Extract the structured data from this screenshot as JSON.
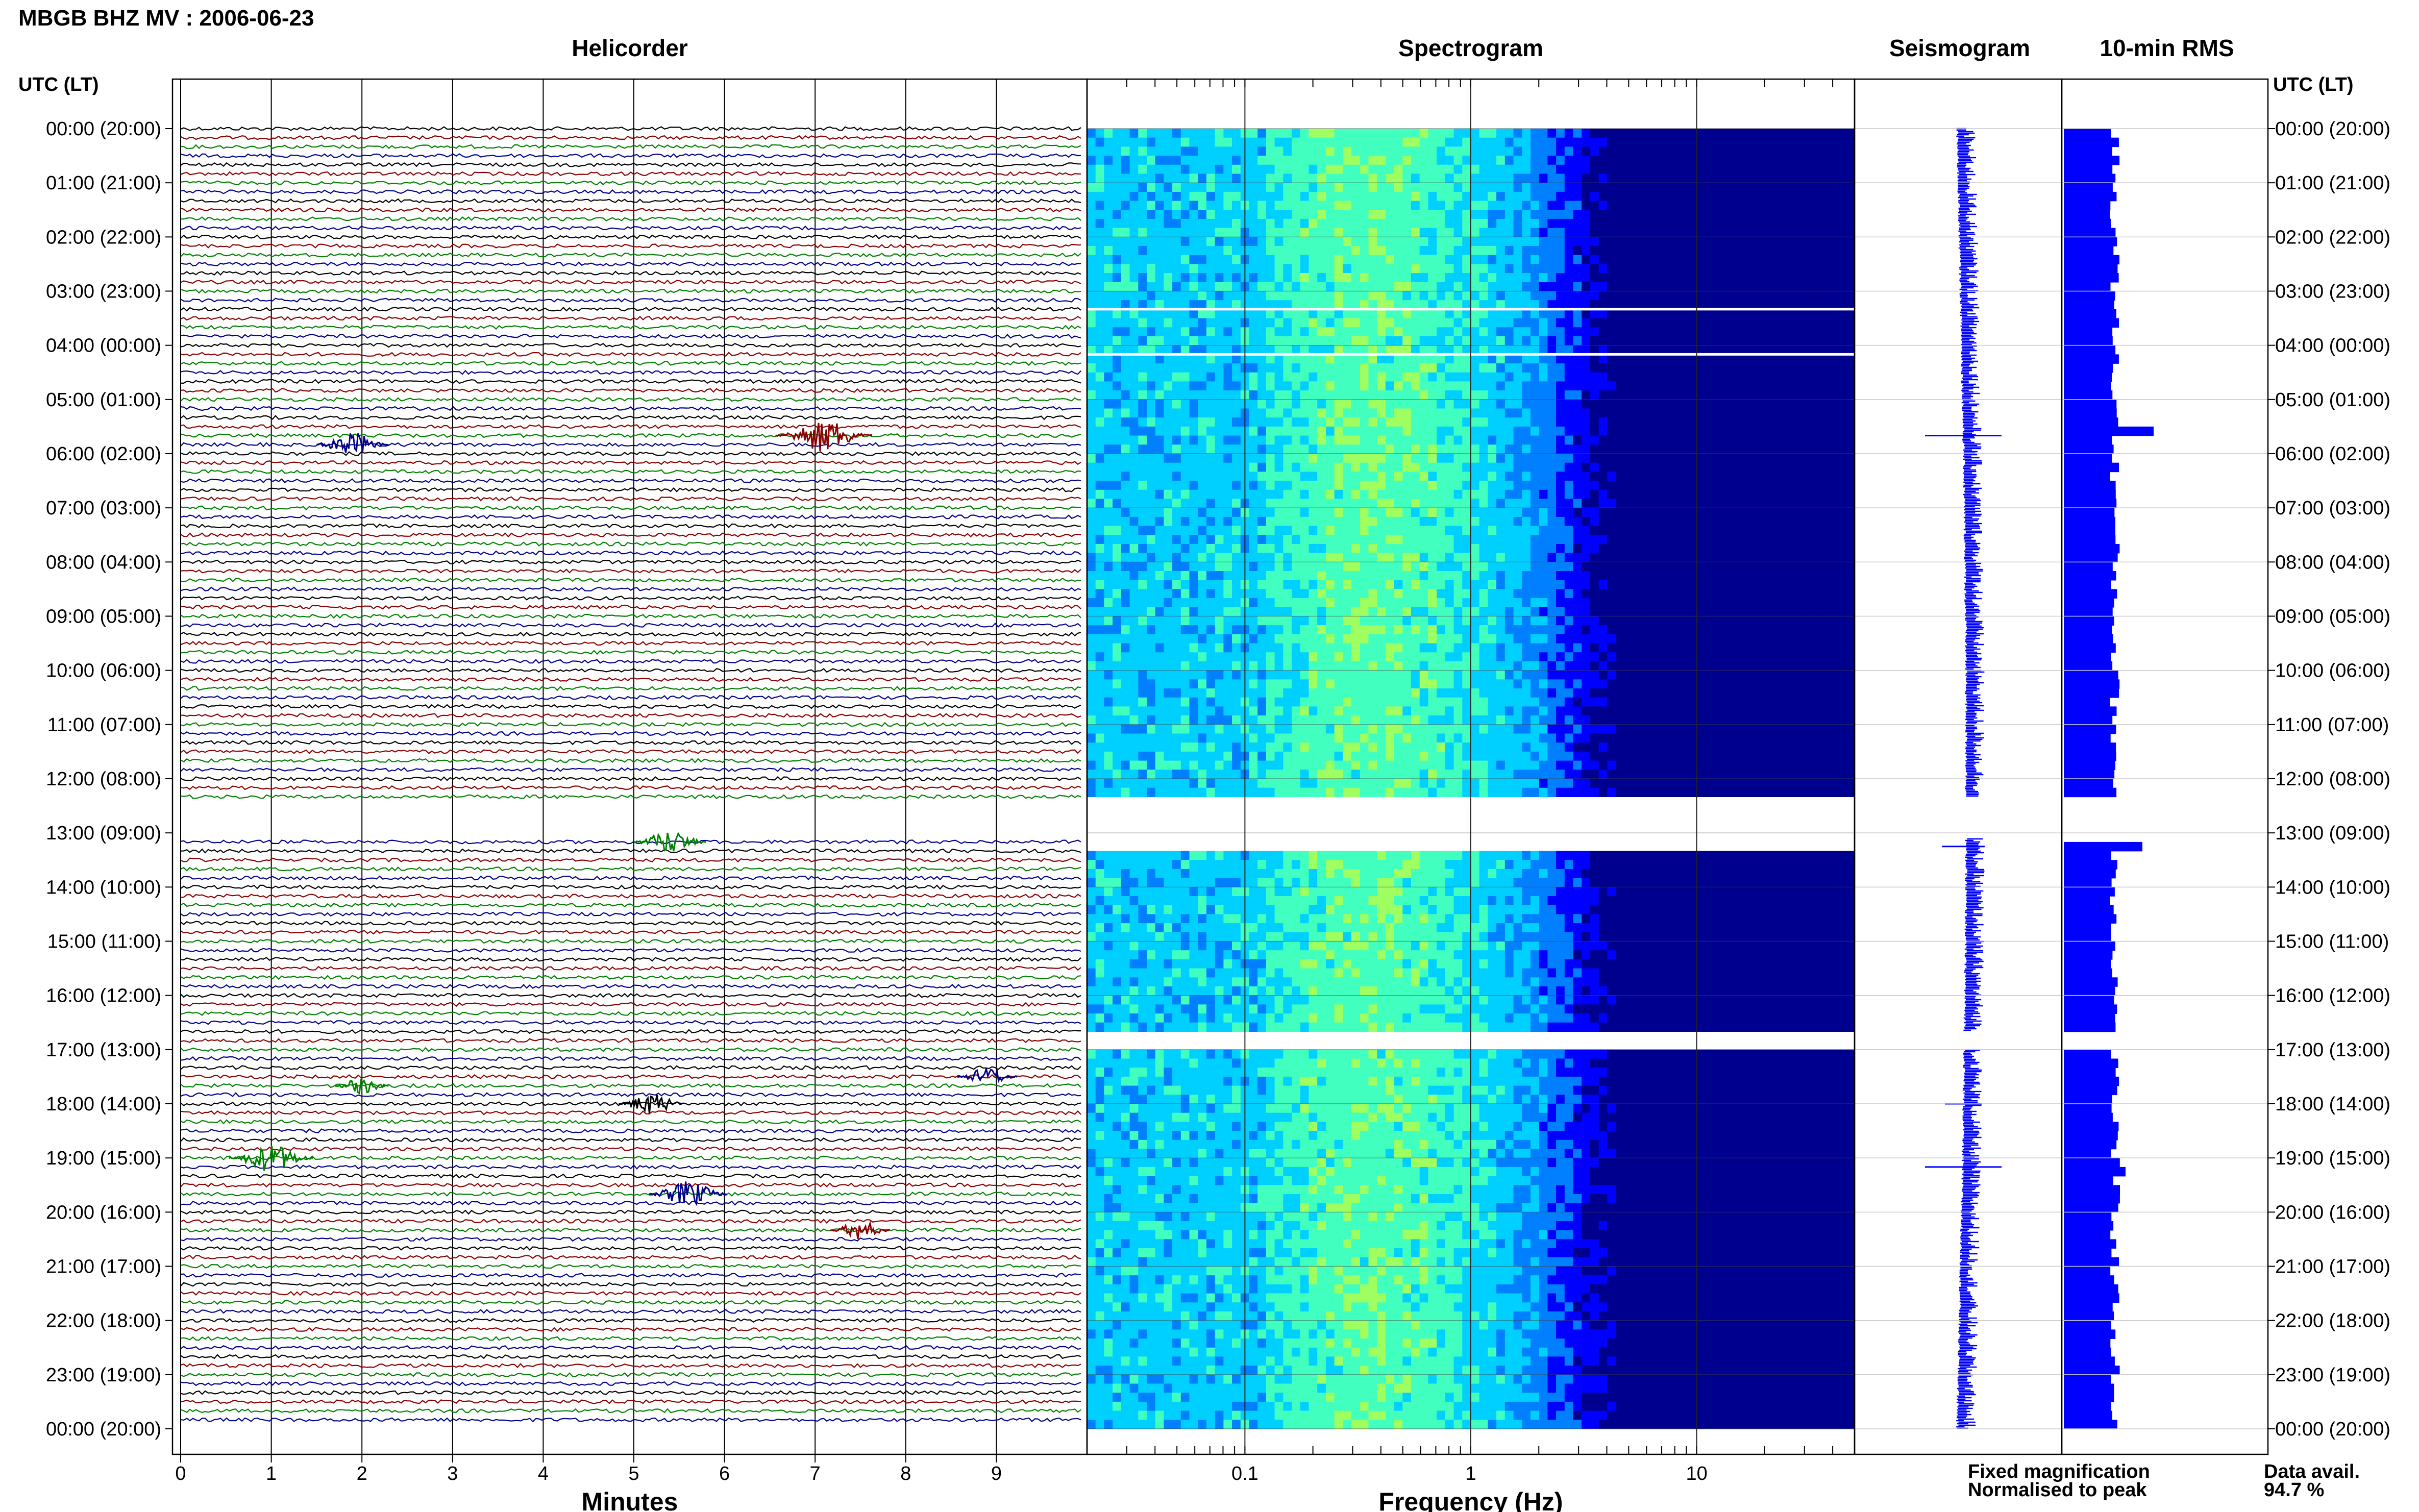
{
  "chart_data": {
    "type": "seismic-daily-summary",
    "title": "MBGB BHZ MV : 2006-06-23",
    "panels": {
      "helicorder": {
        "title": "Helicorder",
        "xlabel": "Minutes",
        "xlim": [
          0,
          10
        ],
        "x_ticks": [
          "0",
          "1",
          "2",
          "3",
          "4",
          "5",
          "6",
          "7",
          "8",
          "9"
        ],
        "trace_colors": [
          "#000000",
          "#8b0000",
          "#008000",
          "#00008b"
        ],
        "gap_utc": [
          "12:30",
          "13:00"
        ],
        "events": [
          {
            "utc": "05:40",
            "minute": 7.1,
            "color": "#8b0000",
            "strength": 1.0
          },
          {
            "utc": "05:50",
            "minute": 1.9,
            "color": "#00008b",
            "strength": 0.6
          },
          {
            "utc": "13:10",
            "minute": 5.4,
            "color": "#008000",
            "strength": 0.6
          },
          {
            "utc": "18:00",
            "minute": 5.2,
            "color": "#000000",
            "strength": 0.5
          },
          {
            "utc": "19:00",
            "minute": 1.0,
            "color": "#008000",
            "strength": 0.8
          },
          {
            "utc": "19:40",
            "minute": 5.6,
            "color": "#00008b",
            "strength": 0.7
          },
          {
            "utc": "17:30",
            "minute": 8.9,
            "color": "#00008b",
            "strength": 0.4
          },
          {
            "utc": "20:20",
            "minute": 7.5,
            "color": "#8b0000",
            "strength": 0.4
          },
          {
            "utc": "17:40",
            "minute": 2.0,
            "color": "#008000",
            "strength": 0.3
          }
        ]
      },
      "spectrogram": {
        "title": "Spectrogram",
        "xlabel": "Frequency (Hz)",
        "xscale": "log",
        "xlim": [
          0.02,
          50
        ],
        "x_ticks": [
          "0.1",
          "1",
          "10"
        ],
        "colormap": [
          "#00008f",
          "#0000ff",
          "#0080ff",
          "#00d0ff",
          "#40ffbf",
          "#a0ff60"
        ],
        "gaps_utc": [
          [
            "12:15",
            "13:15"
          ],
          [
            "16:40",
            "17:00"
          ]
        ],
        "white_lines_utc": [
          "03:20",
          "04:10"
        ]
      },
      "seismogram": {
        "title": "Seismogram",
        "color": "#0000ff",
        "spikes": [
          {
            "utc": "05:40",
            "amplitude": 1.0
          },
          {
            "utc": "13:15",
            "amplitude": 0.45
          },
          {
            "utc": "18:00",
            "amplitude": 0.35
          },
          {
            "utc": "19:10",
            "amplitude": 1.0
          }
        ]
      },
      "rms": {
        "title": "10-min RMS",
        "color": "#0000ff",
        "gaps_utc": [
          [
            "12:20",
            "13:10"
          ],
          [
            "16:40",
            "17:00"
          ]
        ],
        "peaks": [
          {
            "utc": "05:30",
            "value": 1.6
          },
          {
            "utc": "13:10",
            "value": 1.4
          },
          {
            "utc": "19:10",
            "value": 1.1
          },
          {
            "utc": "19:30",
            "value": 1.0
          }
        ],
        "baseline_min": 0.82,
        "baseline_max": 1.0
      }
    },
    "y_axis": {
      "label": "UTC (LT)",
      "ticks": [
        "00:00 (20:00)",
        "01:00 (21:00)",
        "02:00 (22:00)",
        "03:00 (23:00)",
        "04:00 (00:00)",
        "05:00 (01:00)",
        "06:00 (02:00)",
        "07:00 (03:00)",
        "08:00 (04:00)",
        "09:00 (05:00)",
        "10:00 (06:00)",
        "11:00 (07:00)",
        "12:00 (08:00)",
        "13:00 (09:00)",
        "14:00 (10:00)",
        "15:00 (11:00)",
        "16:00 (12:00)",
        "17:00 (13:00)",
        "18:00 (14:00)",
        "19:00 (15:00)",
        "20:00 (16:00)",
        "21:00 (17:00)",
        "22:00 (18:00)",
        "23:00 (19:00)",
        "00:00 (20:00)"
      ]
    },
    "legend": {
      "fixed": "Fixed magnification",
      "fixed_color": "#0000ff",
      "normalised": "Normalised to peak",
      "normalised_color": "#ff0000"
    },
    "data_avail_label": "Data avail.",
    "data_avail_value": "94.7 %"
  }
}
